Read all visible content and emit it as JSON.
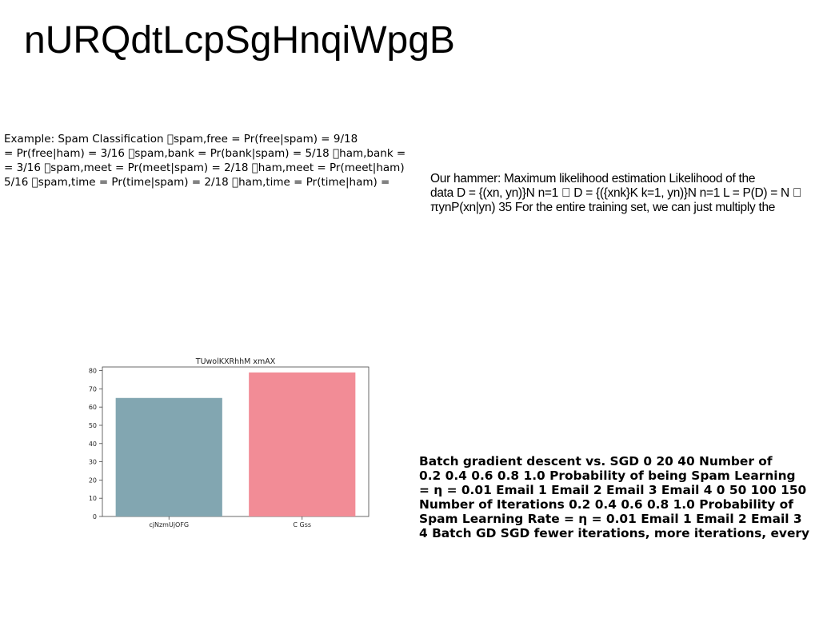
{
  "slide": {
    "title": "nURQdtLcpSgHnqiWpgB"
  },
  "spam_example": {
    "lines": [
      "Example: Spam Classification \u0000spam,free = Pr(free|spam) = 9/18",
      "= Pr(free|ham) = 3/16 \u0000spam,bank = Pr(bank|spam) = 5/18 \u0000ham,bank =",
      "= 3/16 \u0000spam,meet = Pr(meet|spam) = 2/18 \u0000ham,meet = Pr(meet|ham)",
      "5/16 \u0000spam,time = Pr(time|spam) = 2/18 \u0000ham,time = Pr(time|ham) ="
    ]
  },
  "mle": {
    "lines": [
      "Our hammer: Maximum likelihood estimation Likelihood of the",
      "data D = {(xn, yn)}N n=1 \u0000 D = {({xnk}K k=1, yn)}N n=1 L = P(D) = N \u0000",
      "πynP(xn|yn) 35 For the entire training set, we can just multiply the"
    ]
  },
  "sgd": {
    "lines": [
      "Batch gradient descent vs. SGD 0 20 40 Number of",
      "0.2 0.4 0.6 0.8 1.0 Probability of being Spam Learning",
      "= η = 0.01 Email 1 Email 2 Email 3 Email 4 0 50 100 150",
      "Number of Iterations 0.2 0.4 0.6 0.8 1.0 Probability of",
      "Spam Learning Rate = η = 0.01 Email 1 Email 2 Email 3",
      "4 Batch GD SGD fewer iterations, more iterations, every"
    ]
  },
  "chart_data": {
    "type": "bar",
    "title": "TUwolKXRhhM xmAX",
    "xlabel": "",
    "ylabel": "",
    "categories": [
      "cjNzmUjOFG",
      "C Gss"
    ],
    "values": [
      65,
      79
    ],
    "colors": [
      "#82a6b1",
      "#f28c96"
    ],
    "ylim": [
      0,
      82
    ],
    "yticks": [
      0,
      10,
      20,
      30,
      40,
      50,
      60,
      70,
      80
    ],
    "grid": false
  }
}
